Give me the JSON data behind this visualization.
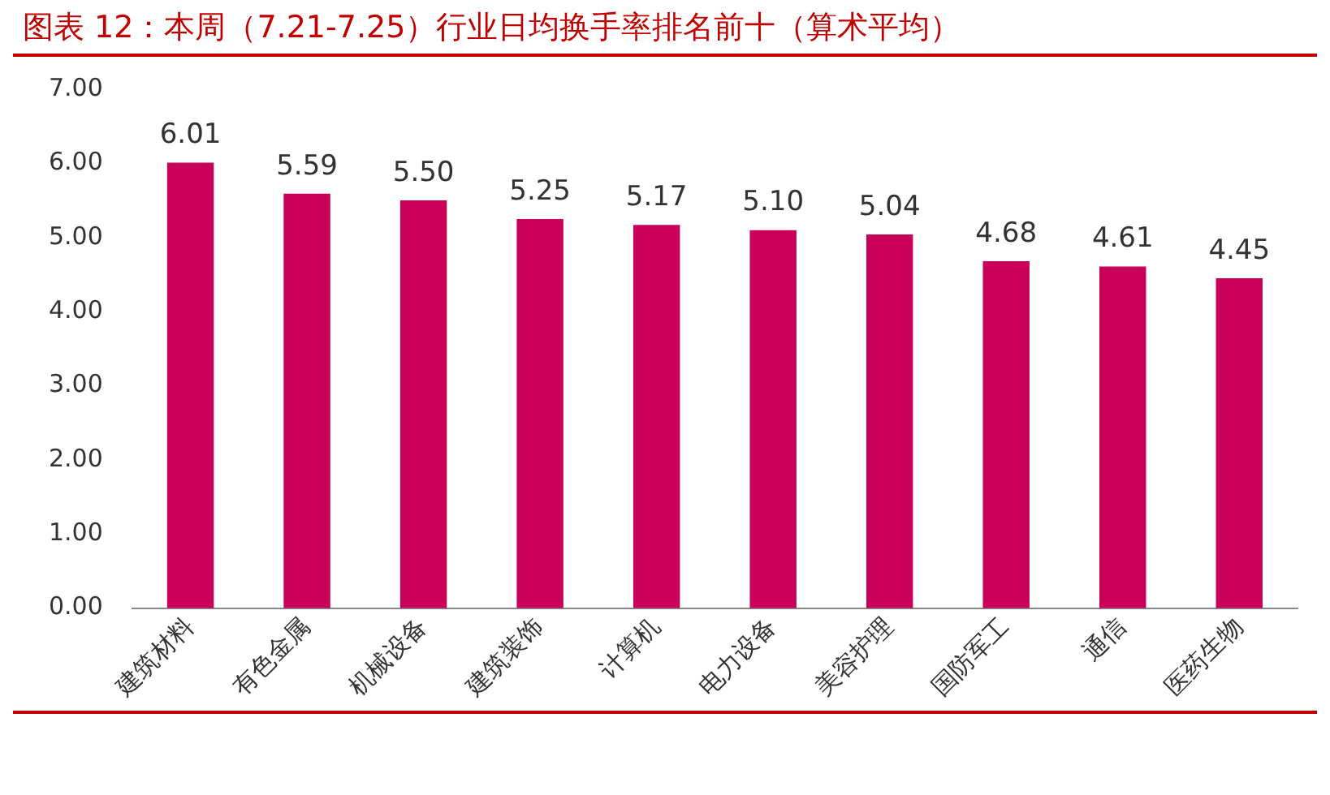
{
  "chart_data": {
    "type": "bar",
    "title": "图表 12：本周（7.21-7.25）行业日均换手率排名前十（算术平均）",
    "categories": [
      "建筑材料",
      "有色金属",
      "机械设备",
      "建筑装饰",
      "计算机",
      "电力设备",
      "美容护理",
      "国防军工",
      "通信",
      "医药生物"
    ],
    "values": [
      6.01,
      5.59,
      5.5,
      5.25,
      5.17,
      5.1,
      5.04,
      4.68,
      4.61,
      4.45
    ],
    "value_labels": [
      "6.01",
      "5.59",
      "5.50",
      "5.25",
      "5.17",
      "5.10",
      "5.04",
      "4.68",
      "4.61",
      "4.45"
    ],
    "color": "#c8005a",
    "ylim": [
      0,
      7
    ],
    "yticks": [
      {
        "value": 0,
        "label": "0.00"
      },
      {
        "value": 1,
        "label": "1.00"
      },
      {
        "value": 2,
        "label": "2.00"
      },
      {
        "value": 3,
        "label": "3.00"
      },
      {
        "value": 4,
        "label": "4.00"
      },
      {
        "value": 5,
        "label": "5.00"
      },
      {
        "value": 6,
        "label": "6.00"
      },
      {
        "value": 7,
        "label": "7.00"
      }
    ],
    "grid": false,
    "legend": false
  }
}
